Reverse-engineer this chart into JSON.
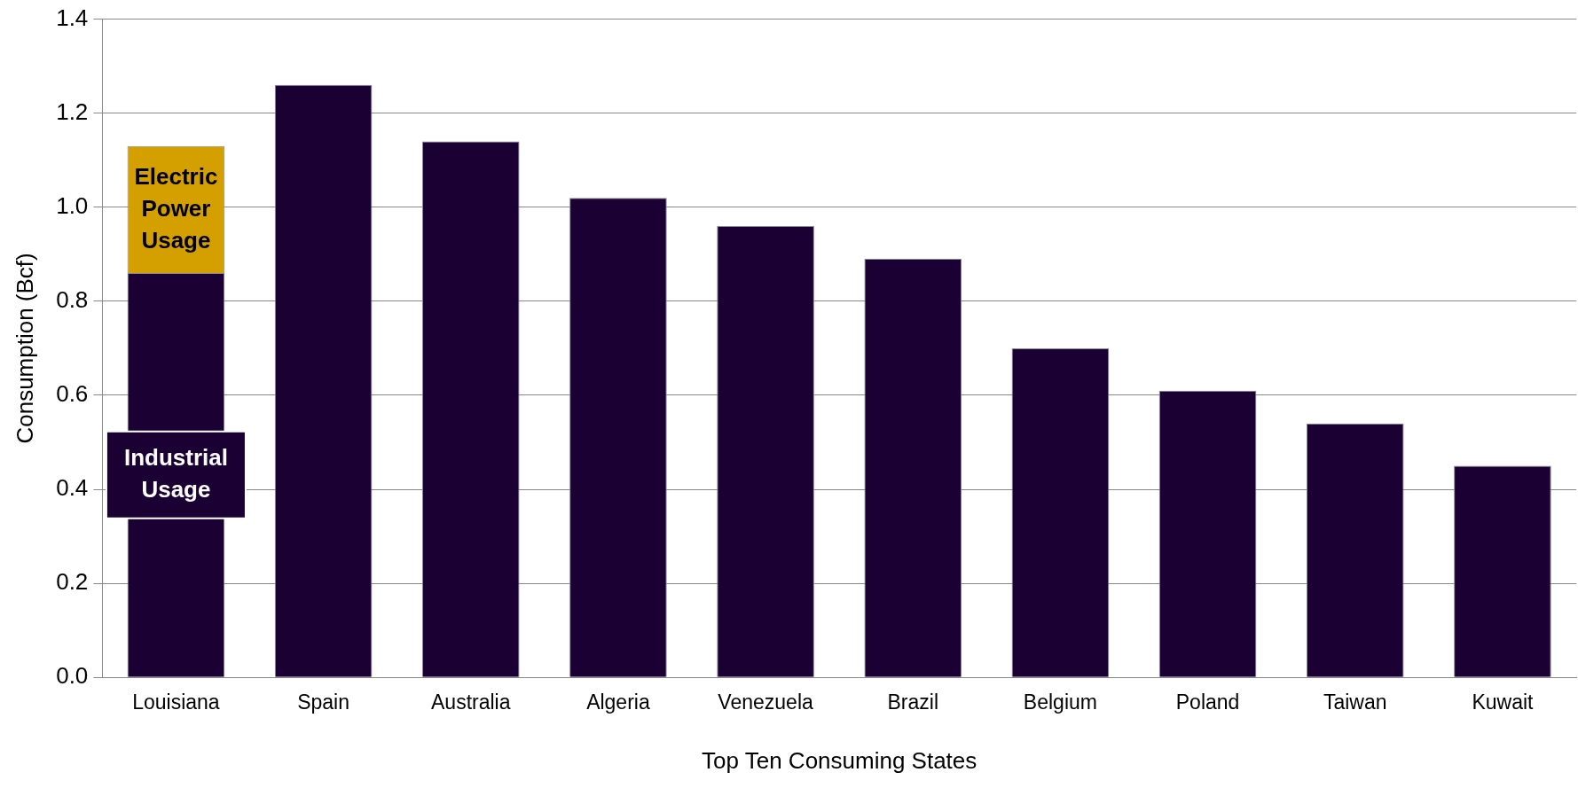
{
  "chart_data": {
    "type": "bar",
    "xlabel": "Top Ten Consuming States",
    "ylabel": "Consumption (Bcf)",
    "categories": [
      "Louisiana",
      "Spain",
      "Australia",
      "Algeria",
      "Venezuela",
      "Brazil",
      "Belgium",
      "Poland",
      "Taiwan",
      "Kuwait"
    ],
    "stacked": true,
    "series": [
      {
        "name": "Industrial Usage",
        "color": "#1a0033",
        "values": [
          0.86,
          1.26,
          1.14,
          1.02,
          0.96,
          0.89,
          0.7,
          0.61,
          0.54,
          0.45
        ]
      },
      {
        "name": "Electric Power Usage",
        "color": "#d4a000",
        "values": [
          0.27,
          null,
          null,
          null,
          null,
          null,
          null,
          null,
          null,
          null
        ]
      }
    ],
    "ylim": [
      0,
      1.4
    ],
    "yticks": [
      {
        "value": 0,
        "label": "0.0"
      },
      0.2,
      0.4,
      0.6,
      0.8,
      {
        "value": 1,
        "label": "1.0"
      },
      1.2,
      1.4
    ],
    "grid": "y",
    "legend": false
  }
}
